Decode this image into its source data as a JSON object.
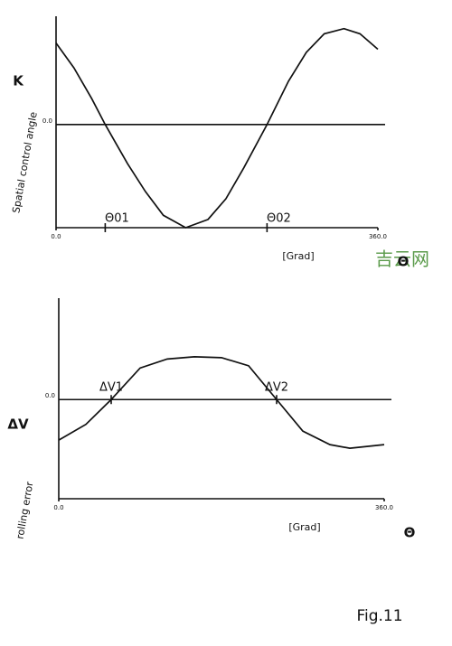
{
  "chart_data": [
    {
      "type": "line",
      "symbol": "K",
      "y_label": "Spatial control angle",
      "x_label": "Θ",
      "x_unit": "[Grad]",
      "x": [
        0,
        20,
        40,
        55,
        80,
        100,
        120,
        145,
        170,
        190,
        210,
        236,
        260,
        280,
        300,
        322,
        340,
        360
      ],
      "values": [
        0.79,
        0.55,
        0.25,
        0,
        -0.38,
        -0.65,
        -0.88,
        -1,
        -0.92,
        -0.72,
        -0.42,
        0,
        0.42,
        0.7,
        0.88,
        0.93,
        0.88,
        0.73
      ],
      "color": "#111",
      "xlim": [
        0,
        360
      ],
      "ylim": [
        -1,
        1.05
      ],
      "xticks": [
        {
          "value": 0,
          "label": "0.0"
        },
        {
          "value": 360,
          "label": "360.0"
        }
      ],
      "yticks": [
        {
          "value": 0,
          "label": "0.0"
        }
      ],
      "grid": true,
      "annotations": [
        {
          "text": "Θ01",
          "x": 55
        },
        {
          "text": "Θ02",
          "x": 236
        }
      ]
    },
    {
      "type": "line",
      "symbol": "ΔV",
      "y_label": "rolling error",
      "x_label": "Θ",
      "x_unit": "[Grad]",
      "x": [
        0,
        30,
        58,
        90,
        120,
        150,
        180,
        210,
        241,
        270,
        300,
        322,
        360
      ],
      "values": [
        -0.9,
        -0.55,
        0,
        0.7,
        0.9,
        0.95,
        0.93,
        0.75,
        0,
        -0.7,
        -1.0,
        -1.08,
        -1.0
      ],
      "color": "#111",
      "xlim": [
        0,
        360
      ],
      "ylim": [
        -2.2,
        2.25
      ],
      "xticks": [
        {
          "value": 0,
          "label": "0.0"
        },
        {
          "value": 360,
          "label": "360.0"
        }
      ],
      "yticks": [
        {
          "value": 0,
          "label": "0.0"
        }
      ],
      "grid": true,
      "annotations": [
        {
          "text": "ΔV1",
          "x": 58
        },
        {
          "text": "ΔV2",
          "x": 241
        }
      ]
    }
  ],
  "figure_label": "Fig.11",
  "watermark": "吉云网"
}
